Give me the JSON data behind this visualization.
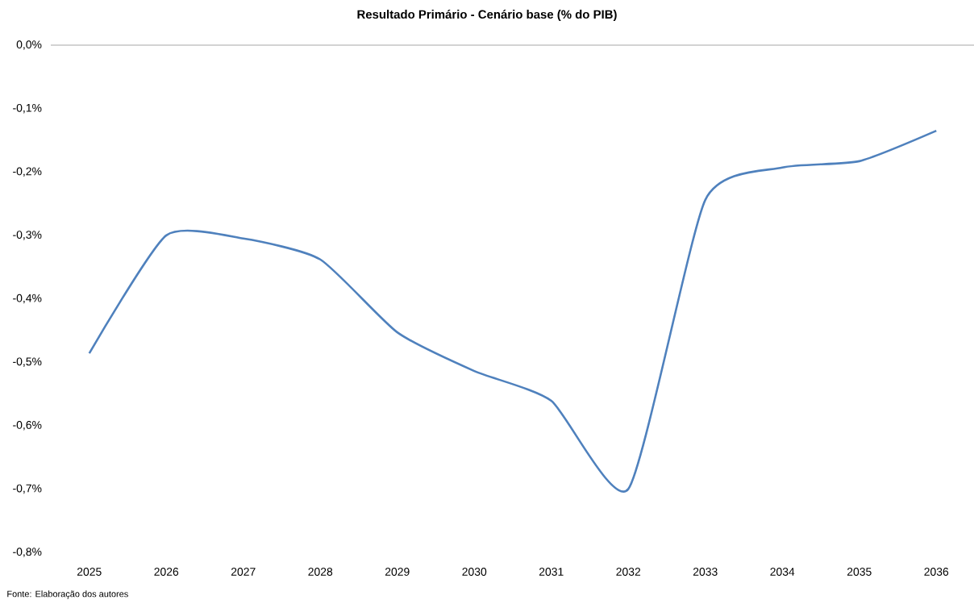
{
  "chart_data": {
    "type": "line",
    "title": "Resultado Primário - Cenário base (% do PIB)",
    "categories": [
      "2025",
      "2026",
      "2027",
      "2028",
      "2029",
      "2030",
      "2031",
      "2032",
      "2033",
      "2034",
      "2035",
      "2036"
    ],
    "series": [
      {
        "color": "#4f81bd",
        "values": [
          -0.486,
          -0.3,
          -0.305,
          -0.338,
          -0.453,
          -0.514,
          -0.561,
          -0.7,
          -0.244,
          -0.193,
          -0.183,
          -0.135
        ]
      }
    ],
    "ylim": [
      -0.8,
      0
    ],
    "yticks": [
      {
        "value": 0,
        "label": "0,0%"
      },
      {
        "value": -0.1,
        "label": "-0,1%"
      },
      {
        "value": -0.2,
        "label": "-0,2%"
      },
      {
        "value": -0.3,
        "label": "-0,3%"
      },
      {
        "value": -0.4,
        "label": "-0,4%"
      },
      {
        "value": -0.5,
        "label": "-0,5%"
      },
      {
        "value": -0.6,
        "label": "-0,6%"
      },
      {
        "value": -0.7,
        "label": "-0,7%"
      },
      {
        "value": -0.8,
        "label": "-0,8%"
      }
    ],
    "marker": "none",
    "line_style": "solid",
    "annotations": [
      "Fonte: Elaboração dos autores"
    ]
  }
}
